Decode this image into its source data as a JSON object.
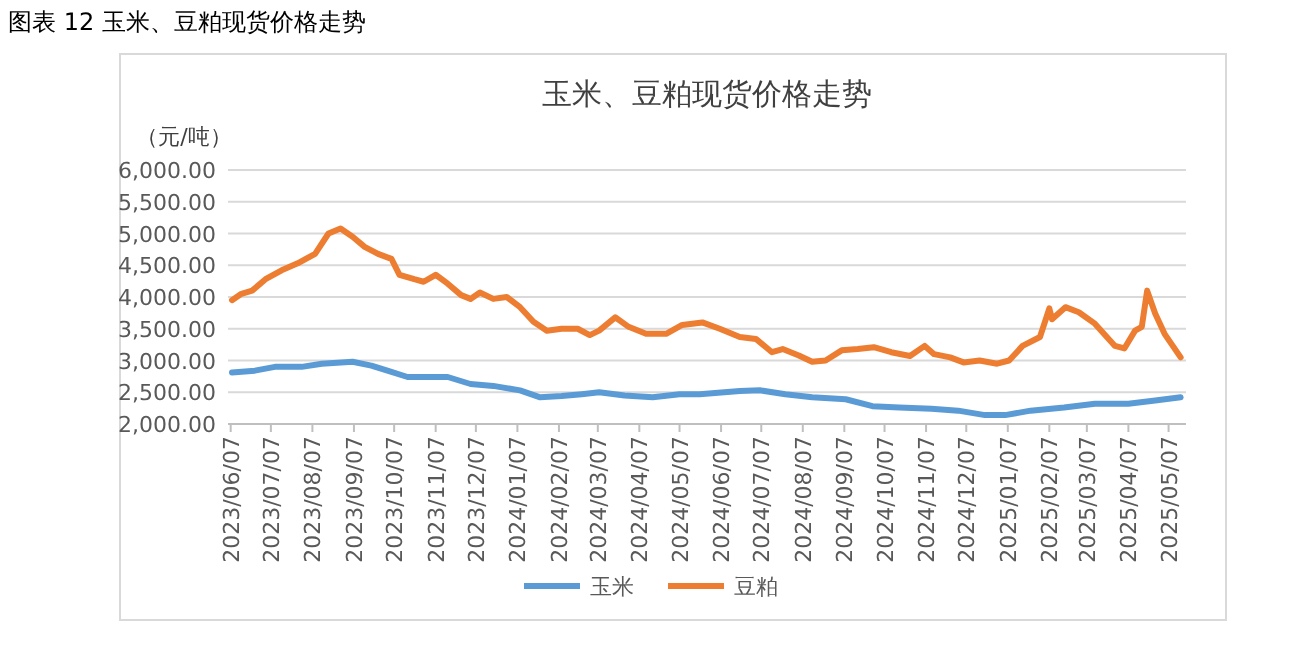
{
  "chart_data": {
    "type": "line",
    "title": "图表 12 玉米、豆粕现货价格走势",
    "subtitle": "玉米、豆粕现货价格走势",
    "ylabel": "（元/吨）",
    "xlim": [
      "2023-06-05",
      "2025-05-20"
    ],
    "xticks": [
      {
        "value": "2023-06-07",
        "label": "2023/06/07"
      },
      {
        "value": "2023-07-07",
        "label": "2023/07/07"
      },
      {
        "value": "2023-08-07",
        "label": "2023/08/07"
      },
      {
        "value": "2023-09-07",
        "label": "2023/09/07"
      },
      {
        "value": "2023-10-07",
        "label": "2023/10/07"
      },
      {
        "value": "2023-11-07",
        "label": "2023/11/07"
      },
      {
        "value": "2023-12-07",
        "label": "2023/12/07"
      },
      {
        "value": "2024-01-07",
        "label": "2024/01/07"
      },
      {
        "value": "2024-02-07",
        "label": "2024/02/07"
      },
      {
        "value": "2024-03-07",
        "label": "2024/03/07"
      },
      {
        "value": "2024-04-07",
        "label": "2024/04/07"
      },
      {
        "value": "2024-05-07",
        "label": "2024/05/07"
      },
      {
        "value": "2024-06-07",
        "label": "2024/06/07"
      },
      {
        "value": "2024-07-07",
        "label": "2024/07/07"
      },
      {
        "value": "2024-08-07",
        "label": "2024/08/07"
      },
      {
        "value": "2024-09-07",
        "label": "2024/09/07"
      },
      {
        "value": "2024-10-07",
        "label": "2024/10/07"
      },
      {
        "value": "2024-11-07",
        "label": "2024/11/07"
      },
      {
        "value": "2024-12-07",
        "label": "2024/12/07"
      },
      {
        "value": "2025-01-07",
        "label": "2025/01/07"
      },
      {
        "value": "2025-02-07",
        "label": "2025/02/07"
      },
      {
        "value": "2025-03-07",
        "label": "2025/03/07"
      },
      {
        "value": "2025-04-07",
        "label": "2025/04/07"
      },
      {
        "value": "2025-05-07",
        "label": "2025/05/07"
      }
    ],
    "ylim": [
      2000,
      6000
    ],
    "yticks": [
      {
        "value": 2000,
        "label": "2,000.00"
      },
      {
        "value": 2500,
        "label": "2,500.00"
      },
      {
        "value": 3000,
        "label": "3,000.00"
      },
      {
        "value": 3500,
        "label": "3,500.00"
      },
      {
        "value": 4000,
        "label": "4,000.00"
      },
      {
        "value": 4500,
        "label": "4,500.00"
      },
      {
        "value": 5000,
        "label": "5,000.00"
      },
      {
        "value": 5500,
        "label": "5,500.00"
      },
      {
        "value": 6000,
        "label": "6,000.00"
      }
    ],
    "grid": "y",
    "legend": "bottom",
    "marker": "none",
    "series": [
      {
        "name": "玉米",
        "color": "#5b9bd5",
        "x": [
          "2023-06-08",
          "2023-06-25",
          "2023-07-10",
          "2023-07-30",
          "2023-08-14",
          "2023-09-06",
          "2023-09-20",
          "2023-10-02",
          "2023-10-17",
          "2023-10-29",
          "2023-11-16",
          "2023-12-03",
          "2023-12-20",
          "2024-01-09",
          "2024-01-24",
          "2024-02-09",
          "2024-02-24",
          "2024-03-08",
          "2024-03-27",
          "2024-04-17",
          "2024-05-07",
          "2024-05-22",
          "2024-06-21",
          "2024-07-06",
          "2024-07-25",
          "2024-08-14",
          "2024-09-08",
          "2024-09-28",
          "2024-10-18",
          "2024-11-11",
          "2024-12-01",
          "2024-12-21",
          "2025-01-05",
          "2025-01-24",
          "2025-02-18",
          "2025-03-13",
          "2025-04-07",
          "2025-04-27",
          "2025-05-16"
        ],
        "values": [
          2810,
          2840,
          2900,
          2900,
          2950,
          2980,
          2920,
          2840,
          2740,
          2740,
          2740,
          2630,
          2600,
          2530,
          2420,
          2440,
          2470,
          2500,
          2450,
          2420,
          2470,
          2470,
          2520,
          2530,
          2470,
          2420,
          2390,
          2280,
          2260,
          2240,
          2210,
          2140,
          2140,
          2210,
          2260,
          2320,
          2320,
          2370,
          2420
        ]
      },
      {
        "name": "豆粕",
        "color": "#ed7d31",
        "x": [
          "2023-06-08",
          "2023-06-15",
          "2023-06-23",
          "2023-07-03",
          "2023-07-15",
          "2023-07-27",
          "2023-08-09",
          "2023-08-19",
          "2023-08-28",
          "2023-09-06",
          "2023-09-15",
          "2023-09-25",
          "2023-10-05",
          "2023-10-11",
          "2023-10-22",
          "2023-10-29",
          "2023-11-07",
          "2023-11-16",
          "2023-11-26",
          "2023-12-03",
          "2023-12-10",
          "2023-12-20",
          "2023-12-30",
          "2024-01-09",
          "2024-01-19",
          "2024-01-29",
          "2024-02-09",
          "2024-02-21",
          "2024-03-01",
          "2024-03-08",
          "2024-03-20",
          "2024-03-30",
          "2024-04-12",
          "2024-04-27",
          "2024-05-09",
          "2024-05-24",
          "2024-06-06",
          "2024-06-21",
          "2024-07-03",
          "2024-07-15",
          "2024-07-23",
          "2024-08-04",
          "2024-08-14",
          "2024-08-24",
          "2024-09-05",
          "2024-09-17",
          "2024-09-29",
          "2024-10-12",
          "2024-10-26",
          "2024-11-06",
          "2024-11-13",
          "2024-11-25",
          "2024-12-05",
          "2024-12-17",
          "2024-12-30",
          "2025-01-08",
          "2025-01-18",
          "2025-01-31",
          "2025-02-07",
          "2025-02-09",
          "2025-02-19",
          "2025-03-01",
          "2025-03-13",
          "2025-03-28",
          "2025-04-04",
          "2025-04-12",
          "2025-04-17",
          "2025-04-21",
          "2025-04-27",
          "2025-05-04",
          "2025-05-16"
        ],
        "values": [
          3950,
          4050,
          4100,
          4280,
          4420,
          4530,
          4680,
          5000,
          5080,
          4950,
          4790,
          4680,
          4600,
          4350,
          4280,
          4240,
          4350,
          4210,
          4030,
          3970,
          4070,
          3970,
          4000,
          3840,
          3610,
          3470,
          3500,
          3500,
          3400,
          3470,
          3680,
          3530,
          3420,
          3420,
          3560,
          3600,
          3500,
          3370,
          3340,
          3130,
          3180,
          3080,
          2980,
          3000,
          3160,
          3180,
          3210,
          3130,
          3070,
          3230,
          3100,
          3050,
          2970,
          3000,
          2950,
          3000,
          3230,
          3370,
          3820,
          3650,
          3840,
          3760,
          3580,
          3230,
          3190,
          3470,
          3530,
          4100,
          3740,
          3420,
          3050
        ]
      }
    ]
  }
}
